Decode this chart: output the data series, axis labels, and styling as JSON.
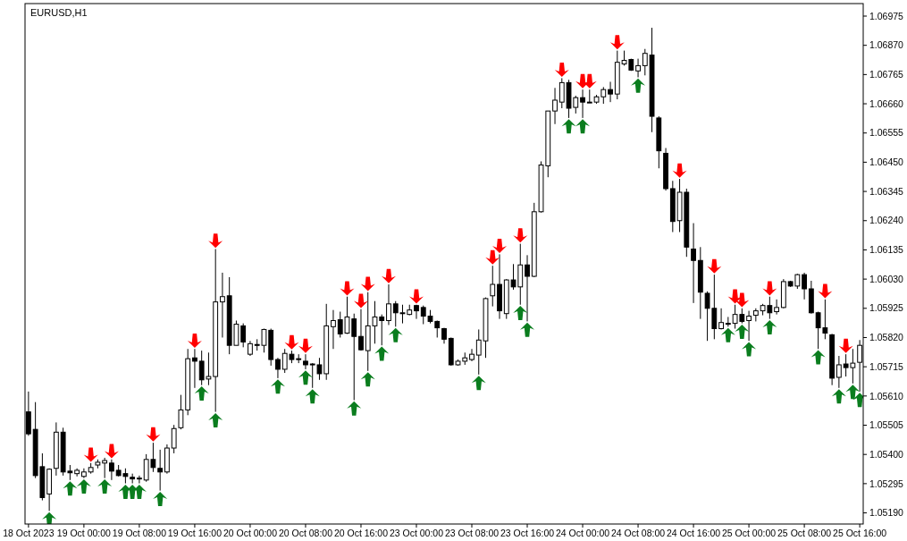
{
  "chart_data": {
    "type": "candlestick",
    "title": "EURUSD,H1",
    "categories": [
      "18 Oct 2023",
      null,
      null,
      null,
      null,
      null,
      null,
      null,
      "19 Oct 00:00",
      null,
      null,
      null,
      null,
      null,
      null,
      null,
      "19 Oct 08:00",
      null,
      null,
      null,
      null,
      null,
      null,
      null,
      "19 Oct 16:00",
      null,
      null,
      null,
      null,
      null,
      null,
      null,
      "20 Oct 00:00",
      null,
      null,
      null,
      null,
      null,
      null,
      null,
      "20 Oct 08:00",
      null,
      null,
      null,
      null,
      null,
      null,
      null,
      "20 Oct 16:00",
      null,
      null,
      null,
      null,
      null,
      null,
      null,
      "23 Oct 00:00",
      null,
      null,
      null,
      null,
      null,
      null,
      null,
      "23 Oct 08:00",
      null,
      null,
      null,
      null,
      null,
      null,
      null,
      "23 Oct 16:00",
      null,
      null,
      null,
      null,
      null,
      null,
      null,
      "24 Oct 00:00",
      null,
      null,
      null,
      null,
      null,
      null,
      null,
      "24 Oct 08:00",
      null,
      null,
      null,
      null,
      null,
      null,
      null,
      "24 Oct 16:00",
      null,
      null,
      null,
      null,
      null,
      null,
      null,
      "25 Oct 00:00",
      null,
      null,
      null,
      null,
      null,
      null,
      null,
      "25 Oct 08:00",
      null,
      null,
      null,
      null,
      null,
      null,
      null,
      "25 Oct 16:00"
    ],
    "ohlc": [
      [
        1.05553,
        1.05626,
        1.05467,
        1.05474
      ],
      [
        1.0549,
        1.05588,
        1.05315,
        1.05324
      ],
      [
        1.05356,
        1.05404,
        1.05235,
        1.05245
      ],
      [
        1.05258,
        1.0535,
        1.05197,
        1.05347
      ],
      [
        1.0535,
        1.05515,
        1.05324,
        1.0548
      ],
      [
        1.0548,
        1.05496,
        1.05324,
        1.05337
      ],
      [
        1.0534,
        1.05362,
        1.05308,
        1.05334
      ],
      [
        1.05331,
        1.0535,
        1.05321,
        1.05343
      ],
      [
        1.05321,
        1.0535,
        1.05315,
        1.05337
      ],
      [
        1.05337,
        1.05369,
        1.05331,
        1.05353
      ],
      [
        1.05362,
        1.05382,
        1.0535,
        1.05372
      ],
      [
        1.05369,
        1.05388,
        1.05315,
        1.05378
      ],
      [
        1.05369,
        1.05382,
        1.05308,
        1.0534
      ],
      [
        1.05343,
        1.05362,
        1.05321,
        1.05324
      ],
      [
        1.05331,
        1.0535,
        1.05296,
        1.05321
      ],
      [
        1.05318,
        1.05331,
        1.05296,
        1.05312
      ],
      [
        1.05315,
        1.05324,
        1.05296,
        1.05315
      ],
      [
        1.05308,
        1.05401,
        1.05302,
        1.05382
      ],
      [
        1.05382,
        1.05442,
        1.05337,
        1.05353
      ],
      [
        1.0535,
        1.05417,
        1.0527,
        1.05337
      ],
      [
        1.05337,
        1.05436,
        1.05331,
        1.05423
      ],
      [
        1.05423,
        1.05506,
        1.05404,
        1.05493
      ],
      [
        1.05496,
        1.05614,
        1.0549,
        1.0556
      ],
      [
        1.0556,
        1.05779,
        1.05541,
        1.05744
      ],
      [
        1.05747,
        1.05779,
        1.05639,
        1.05735
      ],
      [
        1.05735,
        1.05773,
        1.05649,
        1.05668
      ],
      [
        1.05671,
        1.05766,
        1.05649,
        1.0568
      ],
      [
        1.0568,
        1.06138,
        1.05553,
        1.05948
      ],
      [
        1.05948,
        1.06053,
        1.0582,
        1.05967
      ],
      [
        1.0597,
        1.06037,
        1.0576,
        1.05792
      ],
      [
        1.05792,
        1.05881,
        1.05792,
        1.05868
      ],
      [
        1.05862,
        1.05871,
        1.05785,
        1.05804
      ],
      [
        1.0576,
        1.05808,
        1.05754,
        1.05798
      ],
      [
        1.05795,
        1.05814,
        1.05773,
        1.05792
      ],
      [
        1.05792,
        1.05852,
        1.05766,
        1.05849
      ],
      [
        1.05846,
        1.05852,
        1.05719,
        1.05741
      ],
      [
        1.05741,
        1.05747,
        1.05674,
        1.05706
      ],
      [
        1.05706,
        1.05779,
        1.05693,
        1.05763
      ],
      [
        1.0576,
        1.05773,
        1.05728,
        1.05741
      ],
      [
        1.05744,
        1.0576,
        1.05728,
        1.05741
      ],
      [
        1.05735,
        1.0576,
        1.05706,
        1.05722
      ],
      [
        1.05725,
        1.05728,
        1.05639,
        1.05722
      ],
      [
        1.05722,
        1.05747,
        1.05668,
        1.0569
      ],
      [
        1.0569,
        1.05941,
        1.05668,
        1.05862
      ],
      [
        1.05859,
        1.05919,
        1.05779,
        1.05881
      ],
      [
        1.05884,
        1.05913,
        1.0582,
        1.05833
      ],
      [
        1.05836,
        1.05967,
        1.05833,
        1.05894
      ],
      [
        1.05887,
        1.05906,
        1.05595,
        1.05824
      ],
      [
        1.05824,
        1.05922,
        1.05773,
        1.05776
      ],
      [
        1.05773,
        1.05983,
        1.057,
        1.05862
      ],
      [
        1.05862,
        1.05951,
        1.05798,
        1.05894
      ],
      [
        1.05894,
        1.05903,
        1.05792,
        1.05881
      ],
      [
        1.05881,
        1.06011,
        1.05865,
        1.05941
      ],
      [
        1.05941,
        1.05951,
        1.05859,
        1.05909
      ],
      [
        1.05909,
        1.05938,
        1.05871,
        1.05909
      ],
      [
        1.05903,
        1.05938,
        1.059,
        1.05919
      ],
      [
        1.05935,
        1.05938,
        1.05887,
        1.05916
      ],
      [
        1.05928,
        1.05935,
        1.05868,
        1.05897
      ],
      [
        1.05897,
        1.05919,
        1.05871,
        1.05878
      ],
      [
        1.05878,
        1.05881,
        1.0582,
        1.05855
      ],
      [
        1.05852,
        1.05855,
        1.05798,
        1.05814
      ],
      [
        1.05817,
        1.0582,
        1.05719,
        1.05722
      ],
      [
        1.05722,
        1.05741,
        1.05719,
        1.05735
      ],
      [
        1.05735,
        1.05766,
        1.05722,
        1.05747
      ],
      [
        1.05741,
        1.05779,
        1.05735,
        1.0576
      ],
      [
        1.05757,
        1.05849,
        1.05687,
        1.05811
      ],
      [
        1.05808,
        1.05964,
        1.05747,
        1.0596
      ],
      [
        1.0597,
        1.06078,
        1.05932,
        1.06011
      ],
      [
        1.06011,
        1.06119,
        1.05887,
        1.05916
      ],
      [
        1.05906,
        1.0603,
        1.05887,
        1.06027
      ],
      [
        1.06027,
        1.06084,
        1.05992,
        1.06002
      ],
      [
        1.06002,
        1.06157,
        1.05938,
        1.06081
      ],
      [
        1.06081,
        1.06116,
        1.05878,
        1.0604
      ],
      [
        1.0604,
        1.06304,
        1.06037,
        1.06272
      ],
      [
        1.06272,
        1.06453,
        1.06269,
        1.0644
      ],
      [
        1.06437,
        1.06634,
        1.06396,
        1.06634
      ],
      [
        1.06634,
        1.06717,
        1.06587,
        1.06673
      ],
      [
        1.06666,
        1.06752,
        1.06644,
        1.06736
      ],
      [
        1.06736,
        1.06746,
        1.06609,
        1.06644
      ],
      [
        1.06647,
        1.06689,
        1.06625,
        1.06682
      ],
      [
        1.06682,
        1.06711,
        1.06609,
        1.06666
      ],
      [
        1.06666,
        1.06711,
        1.06663,
        1.06666
      ],
      [
        1.06666,
        1.06692,
        1.0666,
        1.06685
      ],
      [
        1.06685,
        1.0672,
        1.0666,
        1.06711
      ],
      [
        1.06711,
        1.06739,
        1.06666,
        1.06695
      ],
      [
        1.06695,
        1.06851,
        1.06676,
        1.06809
      ],
      [
        1.06803,
        1.06851,
        1.06797,
        1.06816
      ],
      [
        1.06819,
        1.06822,
        1.06778,
        1.06781
      ],
      [
        1.06778,
        1.06822,
        1.06755,
        1.06797
      ],
      [
        1.06797,
        1.06857,
        1.06762,
        1.06841
      ],
      [
        1.06835,
        1.06933,
        1.06558,
        1.06615
      ],
      [
        1.06609,
        1.06615,
        1.06428,
        1.06491
      ],
      [
        1.06482,
        1.06501,
        1.06348,
        1.06355
      ],
      [
        1.06355,
        1.06383,
        1.06199,
        1.06237
      ],
      [
        1.0624,
        1.0639,
        1.06199,
        1.06342
      ],
      [
        1.06342,
        1.06355,
        1.0611,
        1.06145
      ],
      [
        1.06138,
        1.06231,
        1.05944,
        1.06097
      ],
      [
        1.06097,
        1.06145,
        1.05887,
        1.05983
      ],
      [
        1.05979,
        1.05986,
        1.05808,
        1.05925
      ],
      [
        1.05925,
        1.06046,
        1.05814,
        1.05852
      ],
      [
        1.05852,
        1.05925,
        1.05849,
        1.05874
      ],
      [
        1.05871,
        1.05894,
        1.05859,
        1.05868
      ],
      [
        1.05871,
        1.05938,
        1.05852,
        1.05903
      ],
      [
        1.05903,
        1.05925,
        1.05871,
        1.05878
      ],
      [
        1.05881,
        1.05916,
        1.05808,
        1.05897
      ],
      [
        1.059,
        1.05925,
        1.05878,
        1.05916
      ],
      [
        1.05916,
        1.05941,
        1.059,
        1.05935
      ],
      [
        1.05935,
        1.05967,
        1.05887,
        1.05909
      ],
      [
        1.05913,
        1.05957,
        1.05903,
        1.05928
      ],
      [
        1.05928,
        1.0603,
        1.05925,
        1.06021
      ],
      [
        1.06021,
        1.06024,
        1.06002,
        1.06005
      ],
      [
        1.06005,
        1.06049,
        1.05995,
        1.06046
      ],
      [
        1.06046,
        1.06053,
        1.05957,
        1.05995
      ],
      [
        1.05995,
        1.06024,
        1.05906,
        1.05909
      ],
      [
        1.05909,
        1.05913,
        1.05779,
        1.05855
      ],
      [
        1.05855,
        1.05957,
        1.05814,
        1.05836
      ],
      [
        1.0583,
        1.05833,
        1.05649,
        1.05674
      ],
      [
        1.05677,
        1.05754,
        1.05639,
        1.05722
      ],
      [
        1.05725,
        1.0576,
        1.0568,
        1.05712
      ],
      [
        1.05712,
        1.05779,
        1.05655,
        1.05728
      ],
      [
        1.05731,
        1.05811,
        1.05626,
        1.05792
      ]
    ],
    "series": [
      {
        "type": "scatter",
        "color": "#ff0000",
        "values": [
          null,
          null,
          null,
          null,
          null,
          null,
          null,
          null,
          null,
          1.05399,
          null,
          null,
          1.05412,
          null,
          null,
          null,
          null,
          null,
          1.05472,
          null,
          null,
          null,
          null,
          null,
          1.05809,
          null,
          null,
          1.06168,
          null,
          null,
          null,
          null,
          null,
          null,
          null,
          null,
          null,
          null,
          1.05803,
          null,
          1.0579,
          null,
          null,
          null,
          null,
          null,
          1.05997,
          null,
          1.05952,
          1.06013,
          null,
          null,
          1.06041,
          null,
          null,
          null,
          1.05968,
          null,
          null,
          null,
          null,
          null,
          null,
          null,
          null,
          null,
          null,
          1.06108,
          1.06149,
          null,
          null,
          1.06187,
          null,
          null,
          null,
          null,
          null,
          1.06782,
          null,
          null,
          1.06741,
          1.06741,
          null,
          null,
          null,
          1.06881,
          null,
          null,
          null,
          null,
          null,
          null,
          null,
          null,
          1.0642,
          null,
          null,
          null,
          null,
          1.06076,
          null,
          null,
          1.05968,
          1.05955,
          null,
          null,
          null,
          1.05997,
          null,
          null,
          null,
          null,
          null,
          null,
          null,
          1.05987,
          null,
          null,
          1.0579,
          null,
          null
        ]
      },
      {
        "type": "scatter",
        "color": "#0a7d1e",
        "values": [
          null,
          null,
          null,
          1.05167,
          null,
          null,
          1.05278,
          null,
          1.05285,
          null,
          null,
          1.05285,
          null,
          null,
          1.05266,
          1.05266,
          1.05266,
          null,
          null,
          1.0524,
          null,
          null,
          null,
          null,
          null,
          1.05619,
          null,
          1.05523,
          null,
          null,
          null,
          null,
          null,
          null,
          null,
          null,
          1.05644,
          null,
          null,
          null,
          1.05676,
          1.05609,
          null,
          null,
          null,
          null,
          null,
          1.05565,
          null,
          1.0567,
          null,
          1.05762,
          null,
          1.05829,
          null,
          null,
          null,
          null,
          null,
          null,
          null,
          null,
          null,
          null,
          null,
          1.05657,
          null,
          null,
          null,
          null,
          null,
          1.05908,
          1.05848,
          null,
          null,
          null,
          null,
          null,
          1.06579,
          null,
          1.06579,
          null,
          null,
          null,
          null,
          null,
          null,
          null,
          1.06725,
          null,
          null,
          null,
          null,
          null,
          null,
          null,
          null,
          null,
          null,
          null,
          null,
          1.05829,
          null,
          1.05841,
          1.05778,
          null,
          null,
          1.05857,
          null,
          null,
          null,
          null,
          null,
          null,
          1.05749,
          null,
          null,
          1.05609,
          null,
          1.05625,
          1.05596
        ]
      }
    ],
    "ylim": [
      1.0515,
      1.0702
    ],
    "yticks": [
      1.06975,
      {
        "value": 1.0687,
        "label": "1.06870"
      },
      1.06765,
      {
        "value": 1.0666,
        "label": "1.06660"
      },
      1.06555,
      {
        "value": 1.0645,
        "label": "1.06450"
      },
      1.06345,
      {
        "value": 1.0624,
        "label": "1.06240"
      },
      1.06135,
      {
        "value": 1.0603,
        "label": "1.06030"
      },
      1.05925,
      {
        "value": 1.0582,
        "label": "1.05820"
      },
      1.05715,
      {
        "value": 1.0561,
        "label": "1.05610"
      },
      1.05505,
      {
        "value": 1.054,
        "label": "1.05400"
      },
      1.05295,
      {
        "value": 1.0519,
        "label": "1.05190"
      }
    ]
  }
}
